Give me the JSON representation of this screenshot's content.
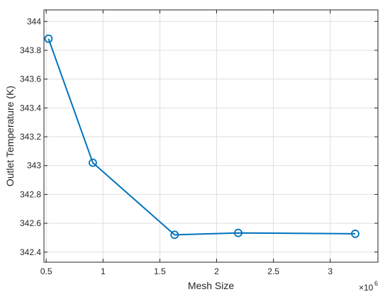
{
  "chart_data": {
    "type": "line",
    "title": "",
    "xlabel": "Mesh Size",
    "ylabel": "Outlet Temperature (K)",
    "x_multiplier_base": "×10",
    "x_multiplier_exp": "6",
    "xlim": [
      0.48,
      3.42
    ],
    "ylim": [
      342.33,
      344.08
    ],
    "xticks": [
      0.5,
      1,
      1.5,
      2,
      2.5,
      3
    ],
    "xtick_labels": [
      "0.5",
      "1",
      "1.5",
      "2",
      "2.5",
      "3"
    ],
    "yticks": [
      342.4,
      342.6,
      342.8,
      343,
      343.2,
      343.4,
      343.6,
      343.8,
      344
    ],
    "ytick_labels": [
      "342.4",
      "342.6",
      "342.8",
      "343",
      "343.2",
      "343.4",
      "343.6",
      "343.8",
      "344"
    ],
    "grid": true,
    "marker": "circle",
    "series": [
      {
        "x": [
          0.52,
          0.91,
          1.63,
          2.19,
          3.22
        ],
        "y": [
          343.88,
          343.02,
          342.52,
          342.533,
          342.527
        ],
        "color": "#0072BD"
      }
    ]
  }
}
